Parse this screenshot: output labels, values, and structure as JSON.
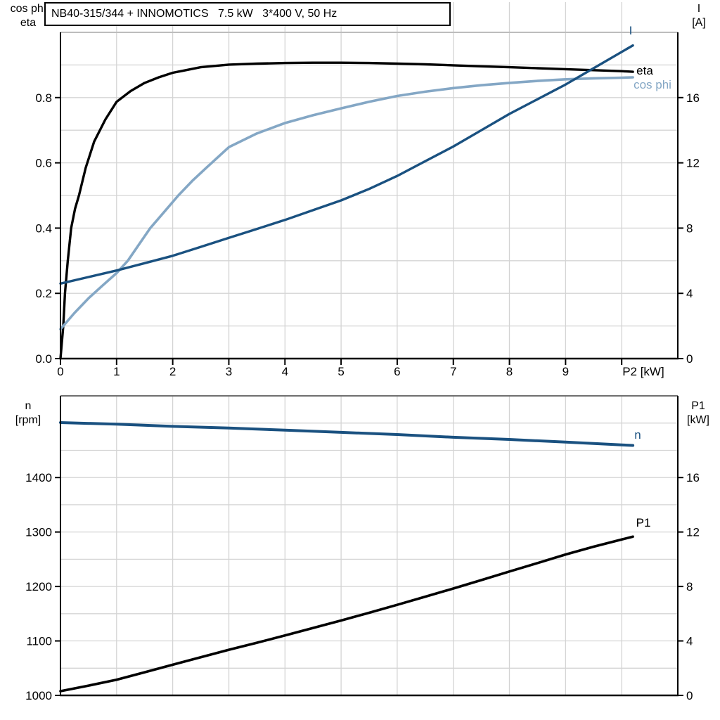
{
  "page": {
    "background": "#ffffff"
  },
  "colors": {
    "grid": "#d4d4d4",
    "axis": "#000000",
    "dark_blue": "#1a5180",
    "light_blue": "#84a7c5",
    "black": "#000000",
    "top_border_upper_chart": "#bdbdbd",
    "top_border_lower_chart": "#6f6f6f"
  },
  "chart_data": [
    {
      "type": "line",
      "title": "NB40-315/344 + INNOMOTICS   7.5 kW   3*400 V, 50 Hz",
      "x_axis": {
        "label": "P2 [kW]",
        "range": [
          0,
          11
        ],
        "grid_step": 1,
        "ticks": [
          {
            "v": 0,
            "t": "0"
          },
          {
            "v": 1,
            "t": "1"
          },
          {
            "v": 2,
            "t": "2"
          },
          {
            "v": 3,
            "t": "3"
          },
          {
            "v": 4,
            "t": "4"
          },
          {
            "v": 5,
            "t": "5"
          },
          {
            "v": 6,
            "t": "6"
          },
          {
            "v": 7,
            "t": "7"
          },
          {
            "v": 8,
            "t": "8"
          },
          {
            "v": 9,
            "t": "9"
          },
          {
            "v": 10,
            "t": "P2 [kW]"
          }
        ]
      },
      "y_left": {
        "title_lines": [
          "cos phi",
          "eta"
        ],
        "range": [
          0,
          1
        ],
        "grid_step": 0.1,
        "ticks": [
          {
            "v": 0,
            "t": "0.0"
          },
          {
            "v": 0.2,
            "t": "0.2"
          },
          {
            "v": 0.4,
            "t": "0.4"
          },
          {
            "v": 0.6,
            "t": "0.6"
          },
          {
            "v": 0.8,
            "t": "0.8"
          }
        ]
      },
      "y_right": {
        "title_lines": [
          "I",
          "[A]"
        ],
        "range": [
          0,
          20
        ],
        "ticks": [
          {
            "v": 0,
            "t": "0"
          },
          {
            "v": 4,
            "t": "4"
          },
          {
            "v": 8,
            "t": "8"
          },
          {
            "v": 12,
            "t": "12"
          },
          {
            "v": 16,
            "t": "16"
          }
        ]
      },
      "series": [
        {
          "id": "eta",
          "name": "eta",
          "axis": "left",
          "color": "#000000",
          "width": 3.4,
          "points": [
            [
              0,
              0
            ],
            [
              0.05,
              0.1
            ],
            [
              0.08,
              0.2
            ],
            [
              0.13,
              0.3
            ],
            [
              0.19,
              0.4
            ],
            [
              0.26,
              0.46
            ],
            [
              0.33,
              0.5
            ],
            [
              0.45,
              0.585
            ],
            [
              0.6,
              0.665
            ],
            [
              0.8,
              0.733
            ],
            [
              1,
              0.787
            ],
            [
              1.25,
              0.82
            ],
            [
              1.5,
              0.845
            ],
            [
              1.75,
              0.862
            ],
            [
              2,
              0.876
            ],
            [
              2.5,
              0.893
            ],
            [
              3,
              0.901
            ],
            [
              3.5,
              0.904
            ],
            [
              4,
              0.906
            ],
            [
              4.5,
              0.907
            ],
            [
              5,
              0.907
            ],
            [
              5.5,
              0.906
            ],
            [
              6,
              0.904
            ],
            [
              6.5,
              0.902
            ],
            [
              7,
              0.899
            ],
            [
              7.5,
              0.896
            ],
            [
              8,
              0.893
            ],
            [
              8.5,
              0.89
            ],
            [
              9,
              0.887
            ],
            [
              9.5,
              0.884
            ],
            [
              10,
              0.881
            ],
            [
              10.2,
              0.879
            ]
          ]
        },
        {
          "id": "cos-phi",
          "name": "cos phi",
          "axis": "left",
          "color": "#84a7c5",
          "width": 3.6,
          "points": [
            [
              0,
              0.09
            ],
            [
              0.25,
              0.14
            ],
            [
              0.5,
              0.185
            ],
            [
              0.75,
              0.224
            ],
            [
              1,
              0.262
            ],
            [
              1.2,
              0.3
            ],
            [
              1.4,
              0.35
            ],
            [
              1.6,
              0.4
            ],
            [
              1.85,
              0.45
            ],
            [
              2.1,
              0.5
            ],
            [
              2.35,
              0.545
            ],
            [
              2.6,
              0.585
            ],
            [
              3,
              0.648
            ],
            [
              3.5,
              0.69
            ],
            [
              4,
              0.722
            ],
            [
              4.5,
              0.746
            ],
            [
              5,
              0.767
            ],
            [
              5.5,
              0.787
            ],
            [
              6,
              0.805
            ],
            [
              6.5,
              0.818
            ],
            [
              7,
              0.829
            ],
            [
              7.5,
              0.838
            ],
            [
              8,
              0.845
            ],
            [
              8.5,
              0.851
            ],
            [
              9,
              0.856
            ],
            [
              9.5,
              0.859
            ],
            [
              10,
              0.861
            ],
            [
              10.2,
              0.862
            ]
          ]
        },
        {
          "id": "current",
          "name": "I",
          "axis": "right",
          "color": "#1a5180",
          "width": 3.4,
          "points": [
            [
              0,
              4.6
            ],
            [
              0.5,
              5
            ],
            [
              1,
              5.4
            ],
            [
              1.5,
              5.85
            ],
            [
              2,
              6.3
            ],
            [
              2.5,
              6.85
            ],
            [
              3,
              7.4
            ],
            [
              3.5,
              7.95
            ],
            [
              4,
              8.5
            ],
            [
              4.5,
              9.1
            ],
            [
              5,
              9.7
            ],
            [
              5.5,
              10.4
            ],
            [
              6,
              11.2
            ],
            [
              6.5,
              12.1
            ],
            [
              7,
              13
            ],
            [
              7.5,
              14
            ],
            [
              8,
              15
            ],
            [
              8.5,
              15.9
            ],
            [
              9,
              16.8
            ],
            [
              9.5,
              17.8
            ],
            [
              10,
              18.8
            ],
            [
              10.2,
              19.2
            ]
          ]
        }
      ]
    },
    {
      "type": "line",
      "x_axis": {
        "range": [
          0,
          11
        ],
        "grid_step": 1,
        "ticks": []
      },
      "y_left": {
        "title_lines": [
          "n",
          "[rpm]"
        ],
        "range": [
          1000,
          1550
        ],
        "grid_step": 50,
        "ticks": [
          {
            "v": 1400,
            "t": "1400"
          },
          {
            "v": 1300,
            "t": "1300"
          },
          {
            "v": 1200,
            "t": "1200"
          },
          {
            "v": 1100,
            "t": "1100"
          },
          {
            "v": 1000,
            "t": "1000"
          }
        ]
      },
      "y_right": {
        "title_lines": [
          "P1",
          "[kW]"
        ],
        "range": [
          0,
          22
        ],
        "ticks": [
          {
            "v": 16,
            "t": "16"
          },
          {
            "v": 12,
            "t": "12"
          },
          {
            "v": 8,
            "t": "8"
          },
          {
            "v": 4,
            "t": "4"
          },
          {
            "v": 0,
            "t": "0"
          }
        ]
      },
      "series": [
        {
          "id": "speed",
          "name": "n",
          "axis": "left",
          "color": "#1a5180",
          "width": 4,
          "points": [
            [
              0,
              1501
            ],
            [
              1,
              1498
            ],
            [
              2,
              1494
            ],
            [
              3,
              1491
            ],
            [
              4,
              1487
            ],
            [
              5,
              1483
            ],
            [
              6,
              1479
            ],
            [
              7,
              1474
            ],
            [
              8,
              1470
            ],
            [
              9,
              1465
            ],
            [
              10,
              1460
            ],
            [
              10.2,
              1459
            ]
          ]
        },
        {
          "id": "p1",
          "name": "P1",
          "axis": "right",
          "color": "#000000",
          "width": 3.6,
          "points": [
            [
              0,
              0.31
            ],
            [
              0.5,
              0.72
            ],
            [
              1,
              1.15
            ],
            [
              1.5,
              1.7
            ],
            [
              2,
              2.25
            ],
            [
              2.5,
              2.8
            ],
            [
              3,
              3.35
            ],
            [
              3.5,
              3.87
            ],
            [
              4,
              4.4
            ],
            [
              4.5,
              4.95
            ],
            [
              5,
              5.5
            ],
            [
              5.5,
              6.07
            ],
            [
              6,
              6.65
            ],
            [
              6.5,
              7.25
            ],
            [
              7,
              7.85
            ],
            [
              7.5,
              8.47
            ],
            [
              8,
              9.1
            ],
            [
              8.5,
              9.72
            ],
            [
              9,
              10.35
            ],
            [
              9.5,
              10.92
            ],
            [
              10,
              11.45
            ],
            [
              10.2,
              11.66
            ]
          ]
        }
      ]
    }
  ]
}
